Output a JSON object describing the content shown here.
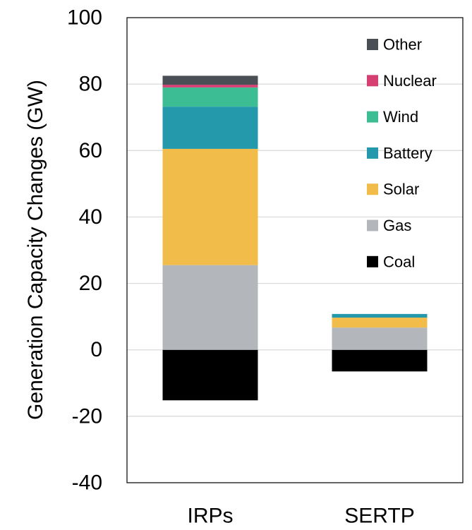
{
  "chart_data": {
    "type": "bar",
    "stacked": true,
    "title": "",
    "xlabel": "",
    "ylabel": "Generation Capacity Changes (GW)",
    "ylim": [
      -40,
      100
    ],
    "yticks": [
      -40,
      -20,
      0,
      20,
      40,
      60,
      80,
      100
    ],
    "grid": "horizontal",
    "legend_placement": "top-right",
    "categories": [
      "IRPs",
      "SERTP"
    ],
    "series": [
      {
        "name": "Coal",
        "color": "#000000",
        "values": [
          -15.2,
          -6.5
        ]
      },
      {
        "name": "Gas",
        "color": "#b3b6bb",
        "values": [
          25.5,
          6.7
        ]
      },
      {
        "name": "Solar",
        "color": "#f2bc4a",
        "values": [
          35.0,
          3.0
        ]
      },
      {
        "name": "Battery",
        "color": "#2599ac",
        "values": [
          12.7,
          1.1
        ]
      },
      {
        "name": "Wind",
        "color": "#3dbd93",
        "values": [
          5.8,
          0.0
        ]
      },
      {
        "name": "Nuclear",
        "color": "#d63f72",
        "values": [
          0.8,
          0.0
        ]
      },
      {
        "name": "Other",
        "color": "#4a4f55",
        "values": [
          2.7,
          0.0
        ]
      }
    ]
  }
}
